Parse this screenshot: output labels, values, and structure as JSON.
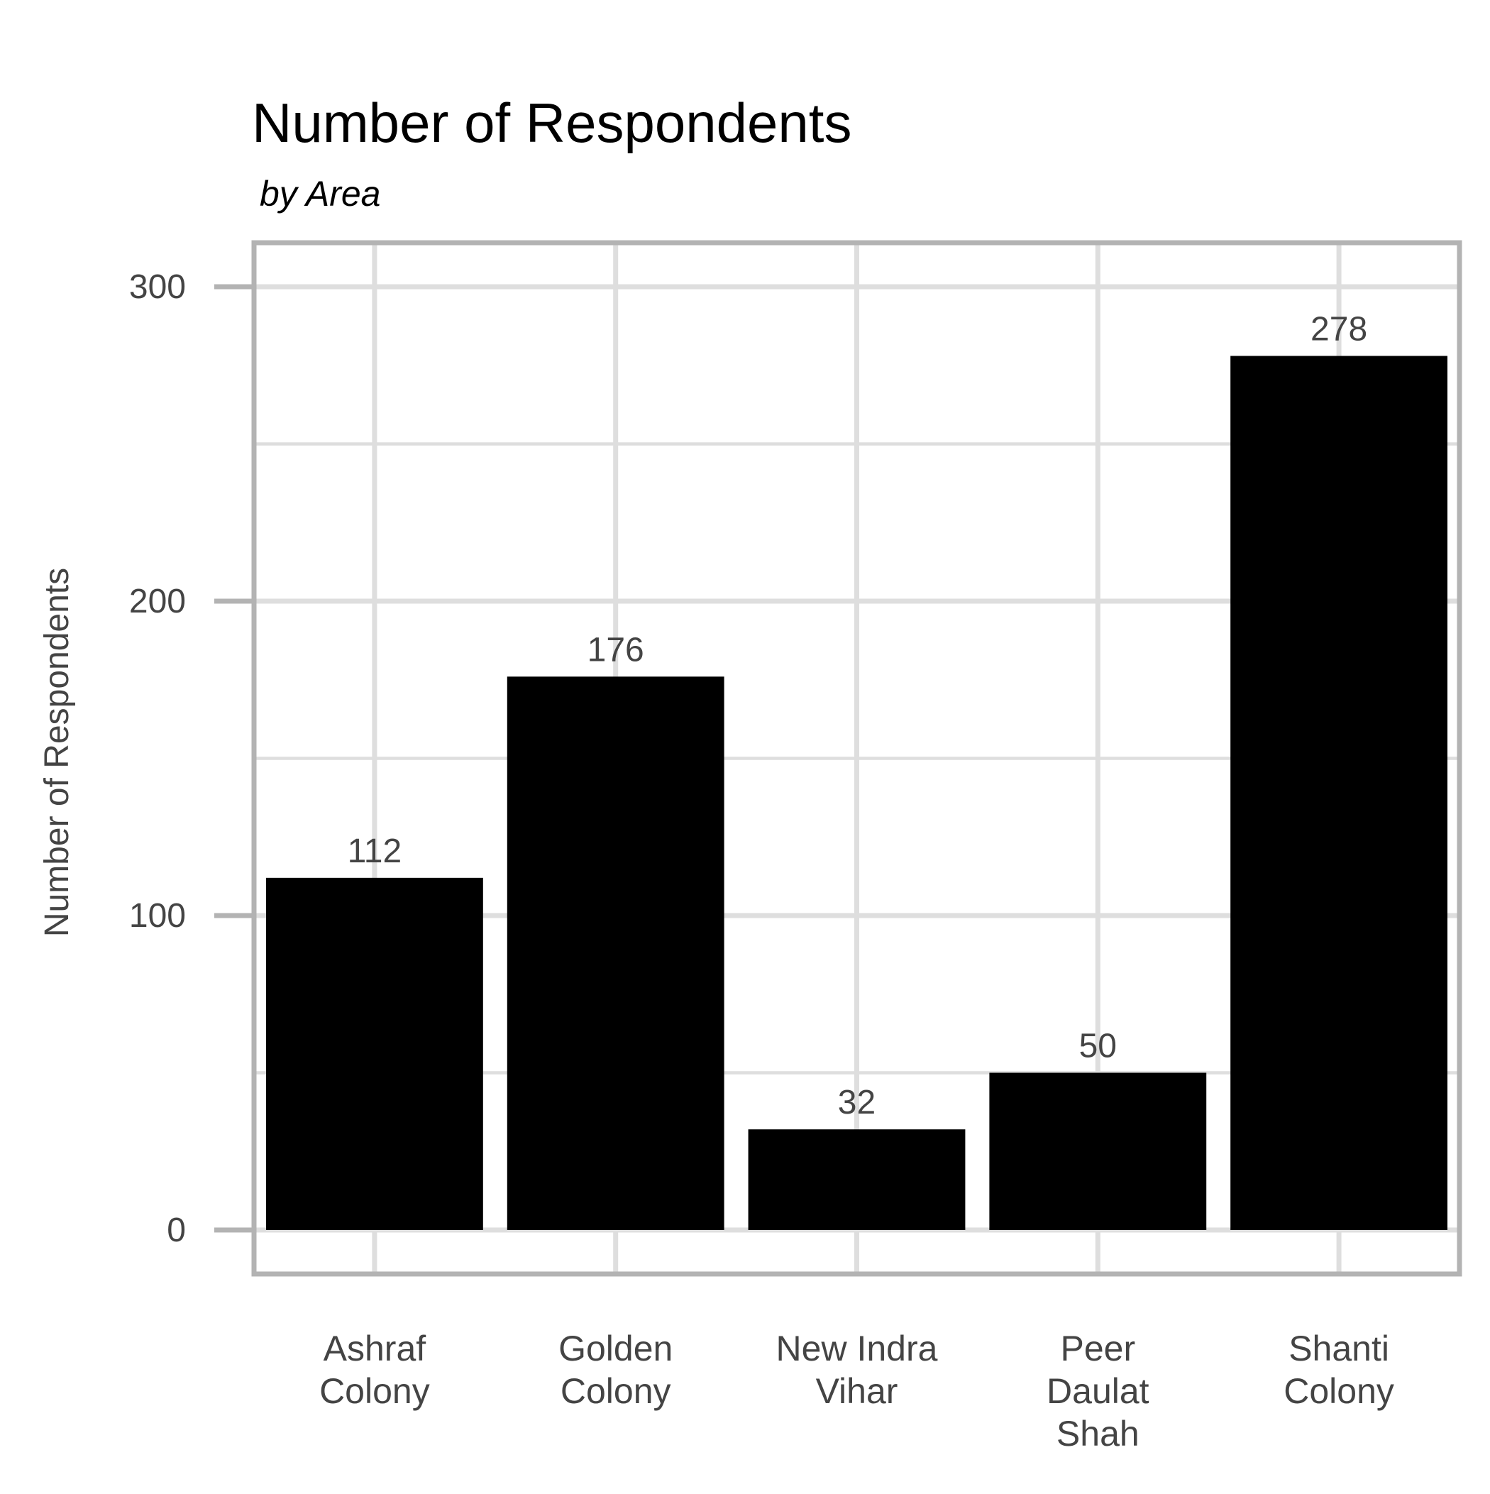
{
  "colors": {
    "bar": "#000000",
    "grid": "#dedede",
    "panel_border": "#b3b3b3",
    "axis_tick": "#b3b3b3",
    "tick_text": "#444444",
    "label_text": "#444444",
    "title_text": "#000000"
  },
  "chart_data": {
    "type": "bar",
    "title": "Number of Respondents",
    "subtitle": "by Area",
    "xlabel": "",
    "ylabel": "Number of Respondents",
    "categories": [
      [
        "Ashraf",
        "Colony"
      ],
      [
        "Golden",
        "Colony"
      ],
      [
        "New Indra",
        "Vihar"
      ],
      [
        "Peer",
        "Daulat",
        "Shah"
      ],
      [
        "Shanti",
        "Colony"
      ]
    ],
    "values": [
      112,
      176,
      32,
      50,
      278
    ],
    "data_labels": [
      "112",
      "176",
      "32",
      "50",
      "278"
    ],
    "ylim": [
      -14,
      314
    ],
    "y_ticks": [
      0,
      100,
      200,
      300
    ],
    "y_tick_labels": [
      "0",
      "100",
      "200",
      "300"
    ],
    "y_minor_grid": [
      50,
      150,
      250
    ],
    "grid": true,
    "legend": "none"
  }
}
